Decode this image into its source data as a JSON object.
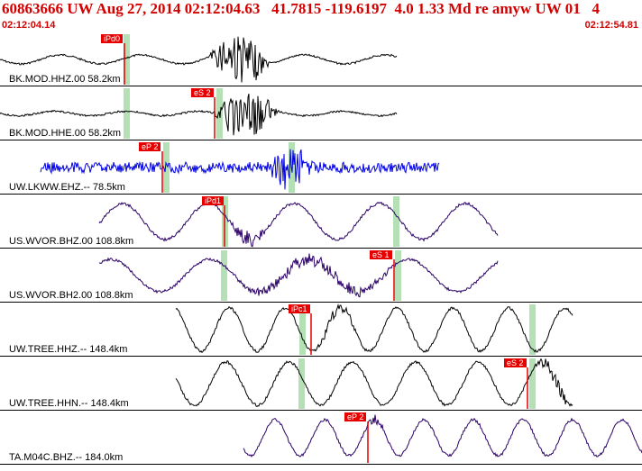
{
  "header": {
    "title": "60863666 UW Aug 27, 2014 02:12:04.63   41.7815 -119.6197  4.0 1.33 Md re amyw UW 01   4",
    "start_time": "02:12:04.14",
    "end_time": "02:12:54.81"
  },
  "colors": {
    "title": "#d40000",
    "pick": "#e60000",
    "window": "#b5dfb5",
    "trace_blue": "#0000e6",
    "trace_purple": "#2a0066",
    "trace_black": "#000000"
  },
  "channels": [
    {
      "label": "BK.MOD.HHZ.00 58.2km",
      "pick": "iPd0",
      "color": "#000000"
    },
    {
      "label": "BK.MOD.HHE.00 58.2km",
      "pick": "eS 2",
      "color": "#000000"
    },
    {
      "label": "UW.LKWW.EHZ.-- 78.5km",
      "pick": "eP 2",
      "color": "#0000e6"
    },
    {
      "label": "US.WVOR.BHZ.00 108.8km",
      "pick": "iPd1",
      "color": "#2a0066"
    },
    {
      "label": "US.WVOR.BH2.00 108.8km",
      "pick": "eS 1",
      "color": "#2a0066"
    },
    {
      "label": "UW.TREE.HHZ.-- 148.4km",
      "pick": "iPc1",
      "color": "#000000"
    },
    {
      "label": "UW.TREE.HHN.-- 148.4km",
      "pick": "eS 2",
      "color": "#000000"
    },
    {
      "label": "TA.M04C.BHZ.-- 184.0km",
      "pick": "eP 2",
      "color": "#2a0066"
    }
  ]
}
